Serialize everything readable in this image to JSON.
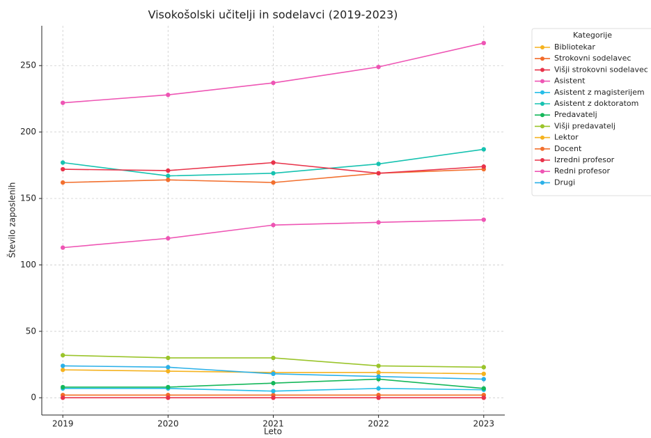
{
  "chart_data": {
    "type": "line",
    "title": "Visokošolski učitelji in sodelavci (2019-2023)",
    "x_label": "Leto",
    "y_label": "Število zaposlenih",
    "x": [
      2019,
      2020,
      2021,
      2022,
      2023
    ],
    "xlim": [
      2018.8,
      2023.2
    ],
    "xticks": [
      2019,
      2020,
      2021,
      2022,
      2023
    ],
    "ylim": [
      -13,
      280
    ],
    "yticks": [
      0,
      50,
      100,
      150,
      200,
      250
    ],
    "grid": true,
    "legend_title": "Kategorije",
    "legend_position": "outside-upper-right",
    "series": [
      {
        "name": "Bibliotekar",
        "color": "#f5b21f",
        "values": [
          2,
          2,
          2,
          2,
          2
        ]
      },
      {
        "name": "Strokovni sodelavec",
        "color": "#f26b2a",
        "values": [
          2,
          2,
          2,
          2,
          2
        ]
      },
      {
        "name": "Višji strokovni sodelavec",
        "color": "#e8334a",
        "values": [
          0,
          0,
          0,
          0,
          0
        ]
      },
      {
        "name": "Asistent",
        "color": "#ee55b4",
        "values": [
          113,
          120,
          130,
          132,
          134
        ]
      },
      {
        "name": "Asistent z magisterijem",
        "color": "#25bde8",
        "values": [
          7,
          7,
          5,
          7,
          6
        ]
      },
      {
        "name": "Asistent z doktoratom",
        "color": "#16c2b0",
        "values": [
          177,
          167,
          169,
          176,
          187
        ]
      },
      {
        "name": "Predavatelj",
        "color": "#14b75a",
        "values": [
          8,
          8,
          11,
          14,
          7
        ]
      },
      {
        "name": "Višji predavatelj",
        "color": "#9ac42a",
        "values": [
          32,
          30,
          30,
          24,
          23
        ]
      },
      {
        "name": "Lektor",
        "color": "#f5b21f",
        "values": [
          21,
          20,
          19,
          19,
          18
        ]
      },
      {
        "name": "Docent",
        "color": "#f2702f",
        "values": [
          162,
          164,
          162,
          169,
          172
        ]
      },
      {
        "name": "Izredni profesor",
        "color": "#e8334a",
        "values": [
          172,
          171,
          177,
          169,
          174
        ]
      },
      {
        "name": "Redni profesor",
        "color": "#ee55b4",
        "values": [
          222,
          228,
          237,
          249,
          267
        ]
      },
      {
        "name": "Drugi",
        "color": "#2ab0e8",
        "values": [
          24,
          23,
          18,
          16,
          14
        ]
      }
    ]
  }
}
